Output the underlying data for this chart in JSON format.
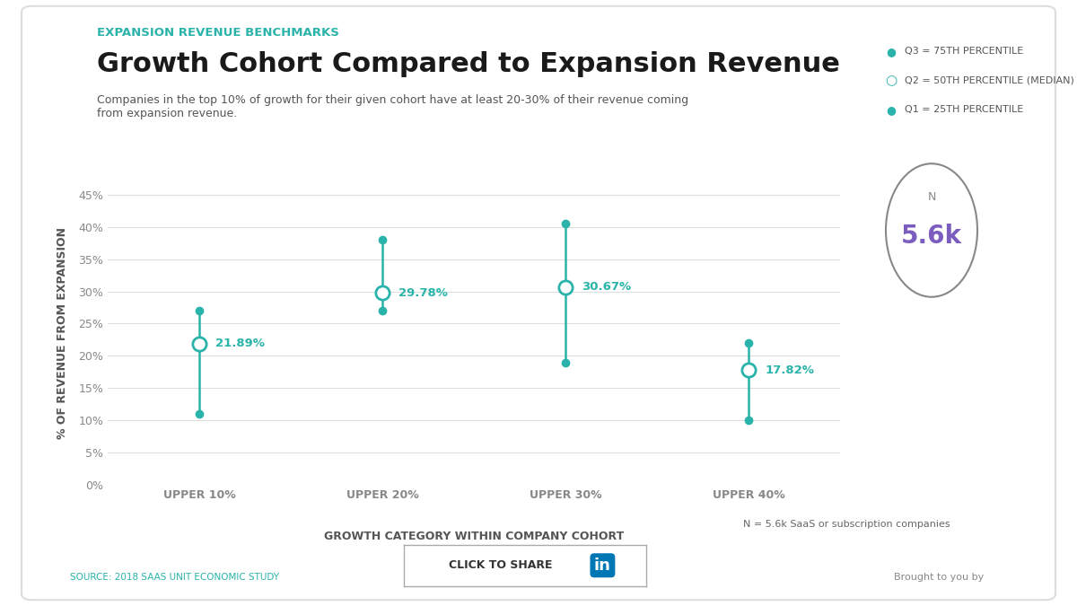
{
  "supertitle": "EXPANSION REVENUE BENCHMARKS",
  "title": "Growth Cohort Compared to Expansion Revenue",
  "subtitle": "Companies in the top 10% of growth for their given cohort have at least 20-30% of their revenue coming\nfrom expansion revenue.",
  "xlabel": "GROWTH CATEGORY WITHIN COMPANY COHORT",
  "ylabel": "% OF REVENUE FROM EXPANSION",
  "categories": [
    "UPPER 10%",
    "UPPER 20%",
    "UPPER 30%",
    "UPPER 40%"
  ],
  "q3_values": [
    27.0,
    38.0,
    40.5,
    22.0
  ],
  "q2_values": [
    21.89,
    29.78,
    30.67,
    17.82
  ],
  "q1_values": [
    11.0,
    27.0,
    19.0,
    10.0
  ],
  "q2_labels": [
    "21.89%",
    "29.78%",
    "30.67%",
    "17.82%"
  ],
  "teal_color": "#2ab3aa",
  "bg_color": "#ffffff",
  "grid_color": "#dddddd",
  "ylim": [
    0,
    47
  ],
  "yticks": [
    0,
    5,
    10,
    15,
    20,
    25,
    30,
    35,
    40,
    45
  ],
  "ytick_labels": [
    "0%",
    "5%",
    "10%",
    "15%",
    "20%",
    "25%",
    "30%",
    "35%",
    "40%",
    "45%"
  ],
  "legend_q3": "Q3 = 75TH PERCENTILE",
  "legend_q2": "Q2 = 50TH PERCENTILE (MEDIAN)",
  "legend_q1": "Q1 = 25TH PERCENTILE",
  "n_label": "N",
  "n_value": "5.6k",
  "note": "N = 5.6k SaaS or subscription companies",
  "source": "SOURCE: 2018 SAAS UNIT ECONOMIC STUDY",
  "share_text": "CLICK TO SHARE",
  "supertitle_color": "#2ab3aa",
  "title_color": "#1a1a1a",
  "subtitle_color": "#555555",
  "axis_label_color": "#555555",
  "tick_color": "#888888",
  "n_circle_color": "#888888",
  "n_value_color": "#7c5cbf"
}
